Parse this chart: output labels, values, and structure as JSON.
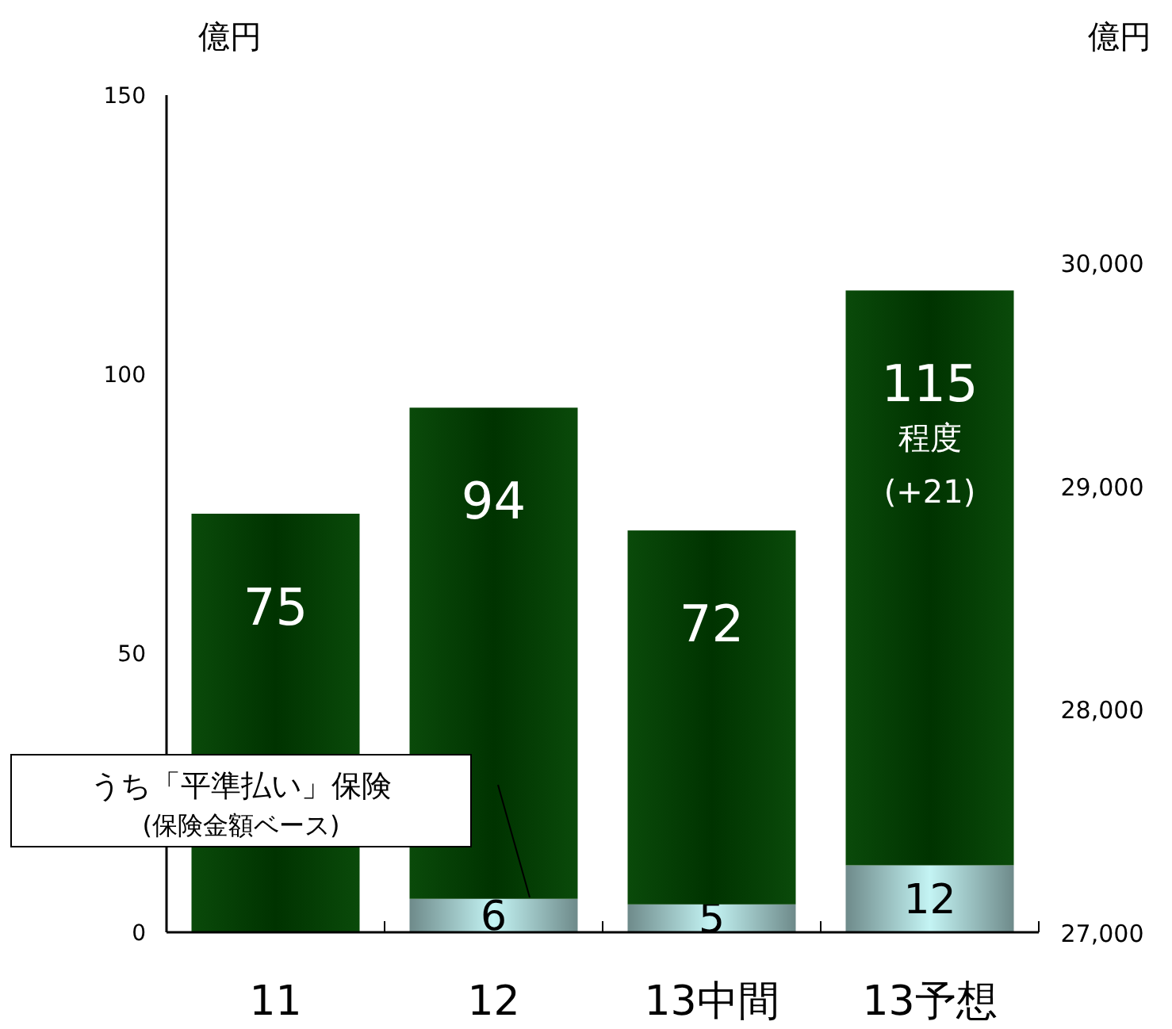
{
  "chart_data": {
    "type": "bar",
    "stacked": true,
    "ylabel": "億円",
    "y2label": "億円",
    "categories": [
      "11",
      "12",
      "13中間",
      "13予想"
    ],
    "series": [
      {
        "name": "うち「平準払い」保険\n(保険金額ベース)",
        "color": "#c4f4f4",
        "values": [
          null,
          6,
          5,
          12
        ],
        "value_labels": [
          null,
          "6",
          "5",
          "12"
        ]
      },
      {
        "color": "#003300",
        "values": [
          75,
          88,
          67,
          103
        ]
      }
    ],
    "totals": [
      "75",
      "94",
      "72",
      "115"
    ],
    "annotations": [
      "程度",
      "(+21)"
    ],
    "ylim": [
      0,
      150
    ],
    "yticks": [
      0,
      50,
      100,
      150
    ],
    "y2lim": [
      27000,
      30750
    ],
    "y2ticks": [
      {
        "value": 27000,
        "label": "27,000"
      },
      {
        "value": 28000,
        "label": "28,000"
      },
      {
        "value": 29000,
        "label": "29,000"
      },
      {
        "value": 30000,
        "label": "30,000"
      }
    ],
    "grid": false
  }
}
